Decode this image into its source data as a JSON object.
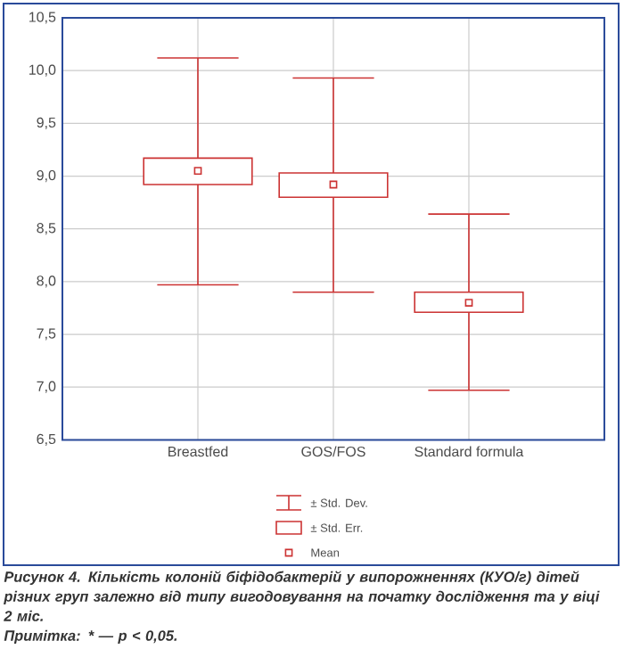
{
  "chart_data": {
    "type": "box",
    "categories": [
      "Breastfed",
      "GOS/FOS",
      "Standard formula"
    ],
    "boxes": [
      {
        "low": 7.97,
        "q1": 8.92,
        "q3": 9.17,
        "high": 10.12,
        "mean": 9.05
      },
      {
        "low": 7.9,
        "q1": 8.8,
        "q3": 9.03,
        "high": 9.93,
        "mean": 8.92
      },
      {
        "low": 6.97,
        "q1": 7.71,
        "q3": 7.9,
        "high": 8.64,
        "mean": 7.8
      }
    ],
    "color": "#cc3333",
    "ylim": [
      6.5,
      10.5
    ],
    "yticks": [
      {
        "value": 6.5,
        "label": "6,5"
      },
      {
        "value": 7.0,
        "label": "7,0"
      },
      {
        "value": 7.5,
        "label": "7,5"
      },
      {
        "value": 8.0,
        "label": "8,0"
      },
      {
        "value": 8.5,
        "label": "8,5"
      },
      {
        "value": 9.0,
        "label": "9,0"
      },
      {
        "value": 9.5,
        "label": "9,5"
      },
      {
        "value": 10.0,
        "label": "10,0"
      },
      {
        "value": 10.5,
        "label": "10,5"
      }
    ],
    "grid": true,
    "annotations": [
      "± Std. Dev.",
      "± Std. Err.",
      "Mean",
      "Рисунок 4. Кількість колоній біфідобактерій у випорожненнях (КУО/г) дітей різних груп залежно від типу вигодовування на початку дослідження та у віці 2 міс.",
      "Примітка: * — p < 0,05."
    ]
  }
}
